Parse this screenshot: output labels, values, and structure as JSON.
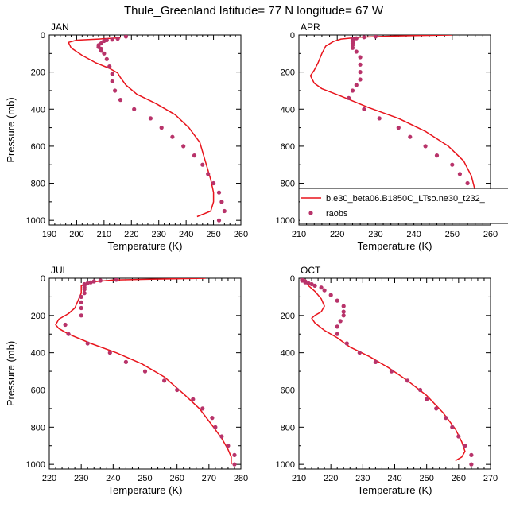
{
  "title": "Thule_Greenland  latitude= 77 N longitude= 67 W",
  "legend": {
    "model_label": "b.e30_beta06.B1850C_LTso.ne30_t232_",
    "obs_label": "raobs",
    "model_color": "#e8141c",
    "obs_color": "#b8336a"
  },
  "chart_data": [
    {
      "type": "line",
      "panel_label": "JAN",
      "xlabel": "Temperature (K)",
      "ylabel": "Pressure (mb)",
      "xlim": [
        190,
        260
      ],
      "ylim": [
        1025,
        0
      ],
      "xticks": [
        190,
        200,
        210,
        220,
        230,
        240,
        250,
        260
      ],
      "yticks": [
        0,
        200,
        400,
        600,
        800,
        1000
      ],
      "show_legend": false,
      "series": [
        {
          "name": "b.e30_beta06.B1850C_LTso.ne30_t232_",
          "kind": "line",
          "points": [
            [
              216,
              15
            ],
            [
              208,
              22
            ],
            [
              200,
              28
            ],
            [
              197,
              40
            ],
            [
              198,
              70
            ],
            [
              202,
              110
            ],
            [
              207,
              150
            ],
            [
              212,
              180
            ],
            [
              215,
              205
            ],
            [
              216,
              230
            ],
            [
              218,
              270
            ],
            [
              222,
              320
            ],
            [
              229,
              370
            ],
            [
              236,
              430
            ],
            [
              241,
              500
            ],
            [
              245,
              580
            ],
            [
              247,
              680
            ],
            [
              249,
              780
            ],
            [
              250,
              850
            ],
            [
              250,
              900
            ],
            [
              249,
              950
            ],
            [
              244,
              980
            ]
          ]
        },
        {
          "name": "raobs",
          "kind": "scatter",
          "points": [
            [
              218,
              8
            ],
            [
              215,
              20
            ],
            [
              213,
              25
            ],
            [
              211,
              28
            ],
            [
              210,
              32
            ],
            [
              209,
              45
            ],
            [
              208,
              55
            ],
            [
              208,
              65
            ],
            [
              209,
              75
            ],
            [
              209,
              85
            ],
            [
              210,
              100
            ],
            [
              211,
              130
            ],
            [
              212,
              170
            ],
            [
              213,
              210
            ],
            [
              213,
              250
            ],
            [
              214,
              300
            ],
            [
              216,
              350
            ],
            [
              221,
              400
            ],
            [
              227,
              450
            ],
            [
              231,
              500
            ],
            [
              235,
              550
            ],
            [
              239,
              600
            ],
            [
              243,
              650
            ],
            [
              246,
              700
            ],
            [
              248,
              750
            ],
            [
              250,
              800
            ],
            [
              252,
              850
            ],
            [
              253,
              900
            ],
            [
              254,
              950
            ],
            [
              252,
              1000
            ]
          ]
        }
      ]
    },
    {
      "type": "line",
      "panel_label": "APR",
      "xlabel": "Temperature (K)",
      "ylabel": "",
      "xlim": [
        210,
        260
      ],
      "ylim": [
        1025,
        0
      ],
      "xticks": [
        210,
        220,
        230,
        240,
        250,
        260
      ],
      "yticks": [
        0,
        200,
        400,
        600,
        800,
        1000
      ],
      "show_legend": true,
      "series": [
        {
          "name": "b.e30_beta06.B1850C_LTso.ne30_t232_",
          "kind": "line",
          "points": [
            [
              250,
              0
            ],
            [
              235,
              5
            ],
            [
              226,
              12
            ],
            [
              221,
              22
            ],
            [
              219,
              35
            ],
            [
              217,
              60
            ],
            [
              216,
              100
            ],
            [
              215,
              150
            ],
            [
              214,
              190
            ],
            [
              213,
              220
            ],
            [
              214,
              260
            ],
            [
              216,
              290
            ],
            [
              221,
              330
            ],
            [
              228,
              390
            ],
            [
              236,
              450
            ],
            [
              243,
              520
            ],
            [
              249,
              600
            ],
            [
              253,
              680
            ],
            [
              255,
              760
            ],
            [
              256,
              840
            ],
            [
              257,
              900
            ],
            [
              256,
              950
            ],
            [
              254,
              980
            ]
          ]
        },
        {
          "name": "raobs",
          "kind": "scatter",
          "points": [
            [
              230,
              8
            ],
            [
              227,
              12
            ],
            [
              225,
              18
            ],
            [
              224,
              22
            ],
            [
              224,
              30
            ],
            [
              224,
              38
            ],
            [
              224,
              45
            ],
            [
              224,
              55
            ],
            [
              224,
              70
            ],
            [
              225,
              90
            ],
            [
              226,
              120
            ],
            [
              226,
              160
            ],
            [
              226,
              200
            ],
            [
              226,
              240
            ],
            [
              225,
              270
            ],
            [
              224,
              300
            ],
            [
              223,
              340
            ],
            [
              227,
              400
            ],
            [
              231,
              450
            ],
            [
              236,
              500
            ],
            [
              239,
              550
            ],
            [
              243,
              600
            ],
            [
              246,
              650
            ],
            [
              250,
              700
            ],
            [
              252,
              750
            ],
            [
              254,
              800
            ],
            [
              256,
              850
            ],
            [
              257,
              900
            ],
            [
              257,
              950
            ],
            [
              257,
              1000
            ]
          ]
        }
      ]
    },
    {
      "type": "line",
      "panel_label": "JUL",
      "xlabel": "Temperature (K)",
      "ylabel": "Pressure (mb)",
      "xlim": [
        220,
        280
      ],
      "ylim": [
        1025,
        0
      ],
      "xticks": [
        220,
        230,
        240,
        250,
        260,
        270,
        280
      ],
      "yticks": [
        0,
        200,
        400,
        600,
        800,
        1000
      ],
      "show_legend": false,
      "series": [
        {
          "name": "b.e30_beta06.B1850C_LTso.ne30_t232_",
          "kind": "line",
          "points": [
            [
              269,
              0
            ],
            [
              252,
              5
            ],
            [
              240,
              10
            ],
            [
              233,
              20
            ],
            [
              230,
              40
            ],
            [
              230,
              80
            ],
            [
              229,
              120
            ],
            [
              228,
              160
            ],
            [
              226,
              190
            ],
            [
              223,
              220
            ],
            [
              222,
              250
            ],
            [
              223,
              270
            ],
            [
              226,
              300
            ],
            [
              233,
              350
            ],
            [
              241,
              400
            ],
            [
              249,
              460
            ],
            [
              256,
              530
            ],
            [
              262,
              620
            ],
            [
              267,
              700
            ],
            [
              271,
              790
            ],
            [
              274,
              860
            ],
            [
              276,
              920
            ],
            [
              277,
              960
            ],
            [
              277,
              1000
            ]
          ]
        },
        {
          "name": "raobs",
          "kind": "scatter",
          "points": [
            [
              241,
              8
            ],
            [
              236,
              13
            ],
            [
              234,
              17
            ],
            [
              233,
              22
            ],
            [
              232,
              27
            ],
            [
              231,
              32
            ],
            [
              231,
              40
            ],
            [
              231,
              50
            ],
            [
              231,
              60
            ],
            [
              231,
              80
            ],
            [
              230,
              100
            ],
            [
              230,
              130
            ],
            [
              230,
              160
            ],
            [
              230,
              200
            ],
            [
              225,
              250
            ],
            [
              226,
              300
            ],
            [
              232,
              350
            ],
            [
              239,
              400
            ],
            [
              244,
              450
            ],
            [
              250,
              500
            ],
            [
              256,
              550
            ],
            [
              260,
              600
            ],
            [
              265,
              650
            ],
            [
              268,
              700
            ],
            [
              271,
              750
            ],
            [
              272,
              800
            ],
            [
              274,
              850
            ],
            [
              276,
              900
            ],
            [
              278,
              950
            ],
            [
              278,
              1000
            ]
          ]
        }
      ]
    },
    {
      "type": "line",
      "panel_label": "OCT",
      "xlabel": "Temperature (K)",
      "ylabel": "",
      "xlim": [
        210,
        270
      ],
      "ylim": [
        1025,
        0
      ],
      "xticks": [
        210,
        220,
        230,
        240,
        250,
        260,
        270
      ],
      "yticks": [
        0,
        200,
        400,
        600,
        800,
        1000
      ],
      "show_legend": false,
      "series": [
        {
          "name": "b.e30_beta06.B1850C_LTso.ne30_t232_",
          "kind": "line",
          "points": [
            [
              212,
              5
            ],
            [
              212,
              20
            ],
            [
              213,
              40
            ],
            [
              215,
              70
            ],
            [
              217,
              110
            ],
            [
              218,
              150
            ],
            [
              217,
              180
            ],
            [
              215,
              200
            ],
            [
              214,
              215
            ],
            [
              215,
              240
            ],
            [
              218,
              280
            ],
            [
              222,
              320
            ],
            [
              226,
              370
            ],
            [
              232,
              420
            ],
            [
              238,
              480
            ],
            [
              244,
              550
            ],
            [
              250,
              630
            ],
            [
              255,
              720
            ],
            [
              259,
              810
            ],
            [
              261,
              880
            ],
            [
              262,
              930
            ],
            [
              261,
              960
            ],
            [
              259,
              980
            ]
          ]
        },
        {
          "name": "raobs",
          "kind": "scatter",
          "points": [
            [
              211,
              8
            ],
            [
              211,
              13
            ],
            [
              212,
              17
            ],
            [
              212,
              22
            ],
            [
              213,
              27
            ],
            [
              214,
              32
            ],
            [
              215,
              40
            ],
            [
              217,
              50
            ],
            [
              218,
              65
            ],
            [
              220,
              90
            ],
            [
              222,
              120
            ],
            [
              224,
              150
            ],
            [
              224,
              180
            ],
            [
              224,
              200
            ],
            [
              223,
              230
            ],
            [
              222,
              260
            ],
            [
              222,
              300
            ],
            [
              225,
              350
            ],
            [
              229,
              400
            ],
            [
              234,
              450
            ],
            [
              239,
              500
            ],
            [
              244,
              550
            ],
            [
              248,
              600
            ],
            [
              250,
              650
            ],
            [
              253,
              700
            ],
            [
              256,
              750
            ],
            [
              258,
              800
            ],
            [
              260,
              850
            ],
            [
              262,
              900
            ],
            [
              264,
              950
            ],
            [
              264,
              1000
            ]
          ]
        }
      ]
    }
  ]
}
